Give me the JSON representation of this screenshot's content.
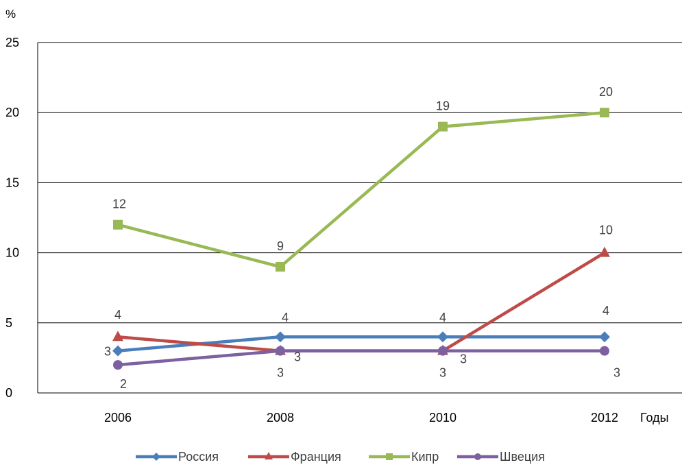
{
  "chart_data": {
    "type": "line",
    "ylabel": "%",
    "xlabel": "Годы",
    "categories": [
      "2006",
      "2008",
      "2010",
      "2012"
    ],
    "ylim": [
      0,
      25
    ],
    "yticks": [
      "0",
      "5",
      "10",
      "15",
      "20",
      "25"
    ],
    "grid": true,
    "legend_position": "bottom",
    "series": [
      {
        "name": "Россия",
        "values": [
          3,
          4,
          4,
          4
        ],
        "color": "#4a7ebb",
        "marker": "diamond",
        "labels": [
          "3",
          "4",
          "4",
          "4"
        ]
      },
      {
        "name": "Франция",
        "values": [
          4,
          3,
          3,
          10
        ],
        "color": "#be4b48",
        "marker": "triangle",
        "labels": [
          "4",
          "3",
          "3",
          "10"
        ]
      },
      {
        "name": "Кипр",
        "values": [
          12,
          9,
          19,
          20
        ],
        "color": "#98b954",
        "marker": "square",
        "labels": [
          "12",
          "9",
          "19",
          "20"
        ]
      },
      {
        "name": "Швеция",
        "values": [
          2,
          3,
          3,
          3
        ],
        "color": "#7d60a0",
        "marker": "circle",
        "labels": [
          "2",
          "3",
          "3",
          "3"
        ]
      }
    ]
  }
}
